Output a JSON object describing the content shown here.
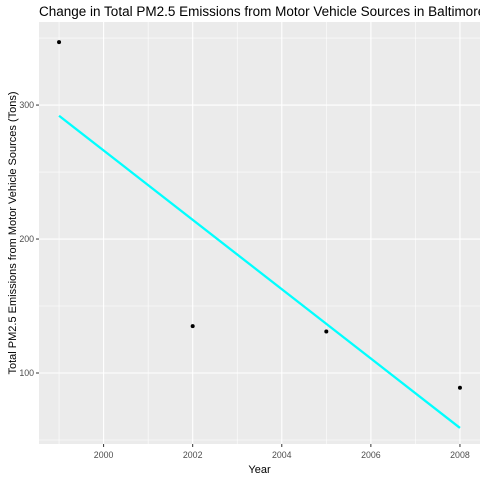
{
  "chart_data": {
    "type": "scatter",
    "title": "Change in Total PM2.5 Emissions from Motor Vehicle Sources in Baltimore (",
    "xlabel": "Year",
    "ylabel": "Total PM2.5 Emissions from Motor Vehicle Sources (Tons)",
    "xlim": [
      1998.55,
      2008.45
    ],
    "ylim": [
      47,
      362
    ],
    "x_ticks": [
      2000,
      2002,
      2004,
      2006,
      2008
    ],
    "y_ticks": [
      100,
      200,
      300
    ],
    "grid": true,
    "legend": "none",
    "series": [
      {
        "points": [
          {
            "x": 1999,
            "y": 347
          },
          {
            "x": 2002,
            "y": 135
          },
          {
            "x": 2005,
            "y": 131
          },
          {
            "x": 2008,
            "y": 89
          }
        ]
      }
    ],
    "trend_line": {
      "x": [
        1999,
        2008
      ],
      "y": [
        292,
        59
      ]
    },
    "colors": {
      "panel_background": "#ebebeb",
      "grid": "#ffffff",
      "points": "#000000",
      "trend_line": "#00ffff"
    }
  }
}
